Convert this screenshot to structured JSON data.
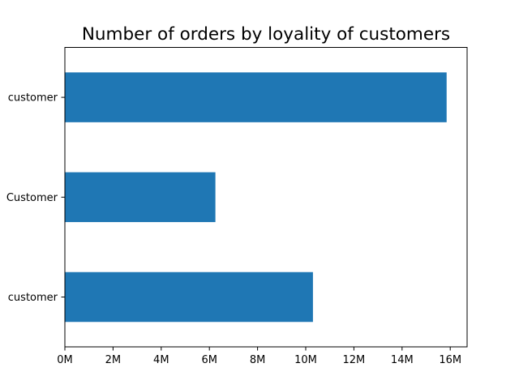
{
  "chart_data": {
    "type": "bar",
    "orientation": "horizontal",
    "title": "Number of orders by loyality of customers",
    "xlabel": "",
    "ylabel": "",
    "categories": [
      "Regular customer",
      "New Customer",
      "Loyal customer"
    ],
    "values": [
      10300000,
      6250000,
      15850000
    ],
    "xlim": [
      0,
      16700000
    ],
    "xticks": [
      0,
      2000000,
      4000000,
      6000000,
      8000000,
      10000000,
      12000000,
      14000000,
      16000000
    ],
    "xtick_labels": [
      "0M",
      "2M",
      "4M",
      "6M",
      "8M",
      "10M",
      "12M",
      "14M",
      "16M"
    ],
    "ytick_labels_visible": [
      "customer",
      "Customer",
      "customer"
    ],
    "bar_color": "#1f77b4",
    "grid": false,
    "legend": "none"
  }
}
